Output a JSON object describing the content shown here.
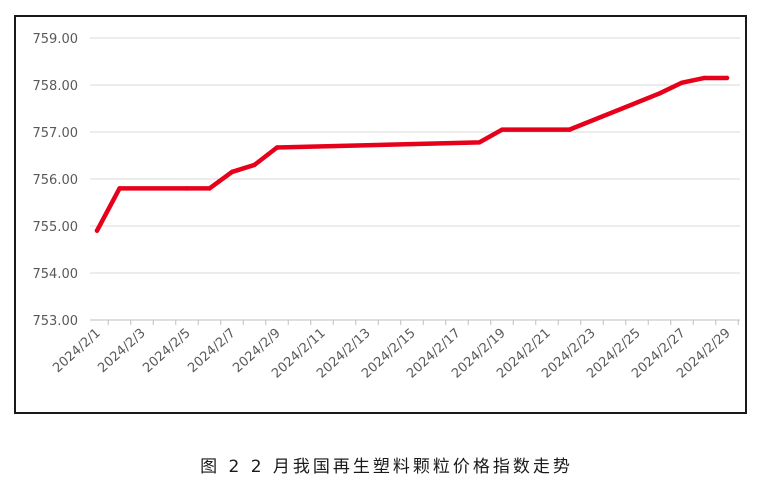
{
  "caption": "图 2  2 月我国再生塑料颗粒价格指数走势",
  "chart_data": {
    "type": "line",
    "title": "",
    "xlabel": "",
    "ylabel": "",
    "ylim": [
      753.0,
      759.0
    ],
    "yticks": [
      753.0,
      754.0,
      755.0,
      756.0,
      757.0,
      758.0,
      759.0
    ],
    "y_tick_labels": [
      "753.00",
      "754.00",
      "755.00",
      "756.00",
      "757.00",
      "758.00",
      "759.00"
    ],
    "x_tick_labels": [
      "2024/2/1",
      "2024/2/3",
      "2024/2/5",
      "2024/2/7",
      "2024/2/9",
      "2024/2/11",
      "2024/2/13",
      "2024/2/15",
      "2024/2/17",
      "2024/2/19",
      "2024/2/21",
      "2024/2/23",
      "2024/2/25",
      "2024/2/27",
      "2024/2/29"
    ],
    "grid": true,
    "legend": "none",
    "series": [
      {
        "color": "#e6001a",
        "points": [
          {
            "x": "2024/2/1",
            "y": 754.9
          },
          {
            "x": "2024/2/2",
            "y": 755.8
          },
          {
            "x": "2024/2/5",
            "y": 755.8
          },
          {
            "x": "2024/2/6",
            "y": 755.8
          },
          {
            "x": "2024/2/7",
            "y": 756.15
          },
          {
            "x": "2024/2/8",
            "y": 756.3
          },
          {
            "x": "2024/2/9",
            "y": 756.67
          },
          {
            "x": "2024/2/18",
            "y": 756.78
          },
          {
            "x": "2024/2/19",
            "y": 757.05
          },
          {
            "x": "2024/2/22",
            "y": 757.05
          },
          {
            "x": "2024/2/26",
            "y": 757.82
          },
          {
            "x": "2024/2/27",
            "y": 758.05
          },
          {
            "x": "2024/2/28",
            "y": 758.15
          },
          {
            "x": "2024/2/29",
            "y": 758.15
          }
        ]
      }
    ]
  }
}
